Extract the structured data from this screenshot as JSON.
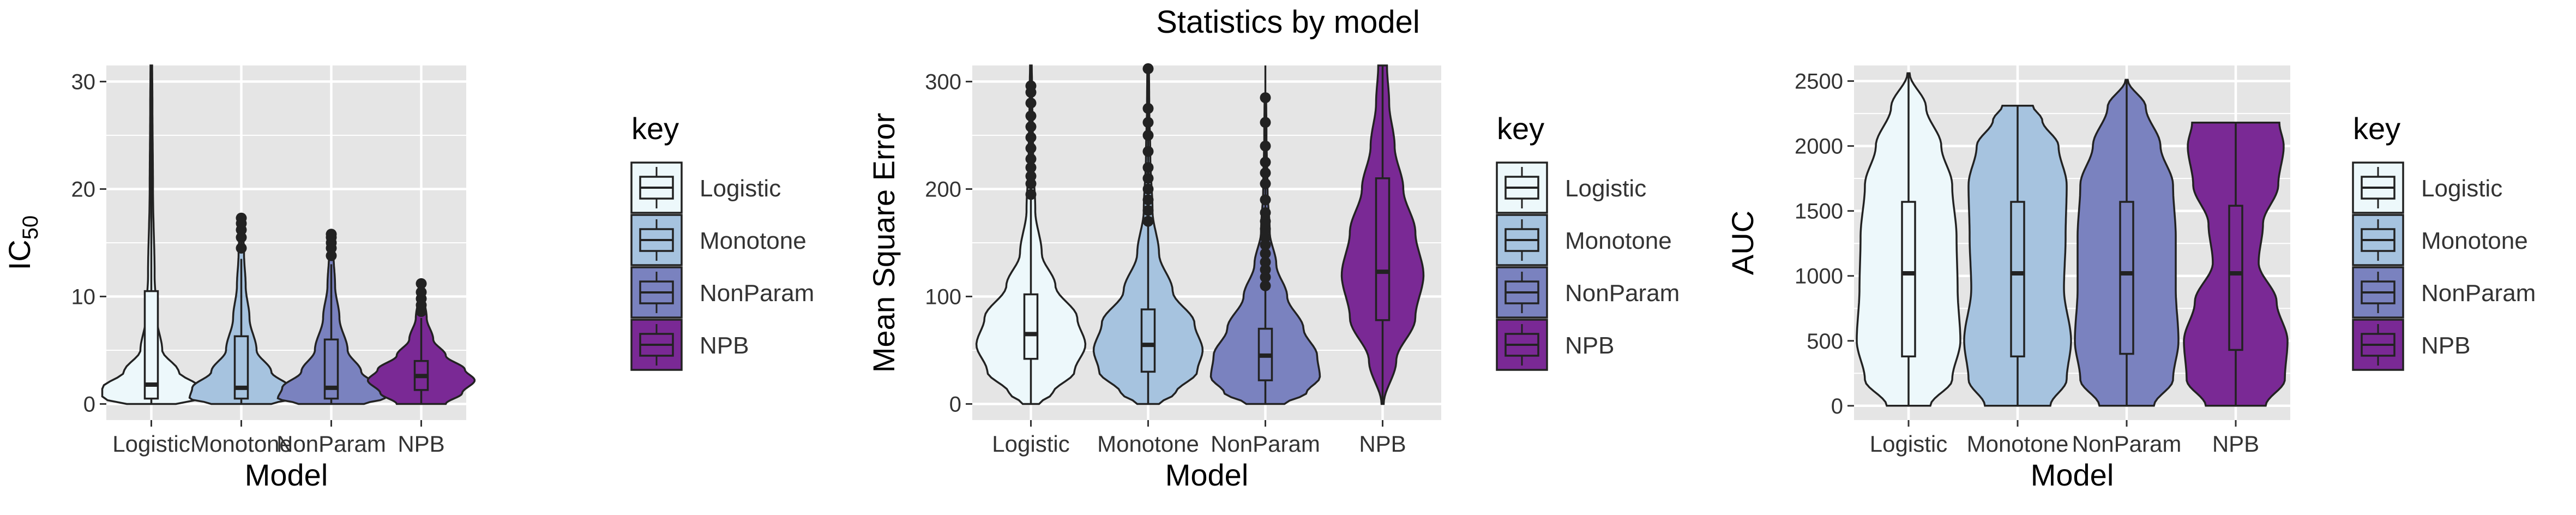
{
  "title": "Statistics by model",
  "colors": {
    "Logistic": "#edf8fb",
    "Monotone": "#a6c3df",
    "NonParam": "#7a82bf",
    "NPB": "#7a2995",
    "panel_bg": "#e5e5e5",
    "grid": "#ffffff",
    "outline": "#222222",
    "text": "#333333"
  },
  "chart_data": [
    {
      "type": "violin",
      "xlabel": "Model",
      "ylabel_main": "IC",
      "ylabel_sub": "50",
      "ylim": [
        -1.5,
        31.5
      ],
      "yticks": [
        0,
        10,
        20,
        30
      ],
      "categories": [
        "Logistic",
        "Monotone",
        "NonParam",
        "NPB"
      ],
      "legend_title": "key",
      "legend_position": "right",
      "violins": [
        {
          "profile": [
            [
              0.0,
              0.45
            ],
            [
              0.5,
              0.9
            ],
            [
              1.5,
              0.9
            ],
            [
              3,
              0.5
            ],
            [
              5,
              0.2
            ],
            [
              8,
              0.1
            ],
            [
              12,
              0.06
            ],
            [
              20,
              0.03
            ],
            [
              28,
              0.02
            ],
            [
              31.5,
              0.015
            ]
          ],
          "box": {
            "q1": 0.5,
            "median": 1.8,
            "q3": 10.5,
            "wlow": 0,
            "whigh": 31.5
          },
          "outliers": []
        },
        {
          "profile": [
            [
              0.0,
              0.55
            ],
            [
              0.5,
              0.95
            ],
            [
              1.5,
              0.9
            ],
            [
              3,
              0.55
            ],
            [
              5,
              0.28
            ],
            [
              8,
              0.15
            ],
            [
              11,
              0.08
            ],
            [
              14,
              0.05
            ],
            [
              17.3,
              0.02
            ]
          ],
          "box": {
            "q1": 0.5,
            "median": 1.5,
            "q3": 6.3,
            "wlow": 0,
            "whigh": 13.5
          },
          "outliers": [
            14.5,
            15.5,
            16.2,
            16.8,
            17.3
          ]
        },
        {
          "profile": [
            [
              0.0,
              0.6
            ],
            [
              0.5,
              0.98
            ],
            [
              1.5,
              0.9
            ],
            [
              3,
              0.55
            ],
            [
              5,
              0.3
            ],
            [
              8,
              0.15
            ],
            [
              11,
              0.07
            ],
            [
              14,
              0.04
            ],
            [
              15.8,
              0.02
            ]
          ],
          "box": {
            "q1": 0.5,
            "median": 1.5,
            "q3": 6.0,
            "wlow": 0,
            "whigh": 13.0
          },
          "outliers": [
            13.8,
            14.5,
            15.0,
            15.5,
            15.8
          ]
        },
        {
          "profile": [
            [
              0.0,
              0.45
            ],
            [
              1,
              0.75
            ],
            [
              2.2,
              0.98
            ],
            [
              3.2,
              0.8
            ],
            [
              4.5,
              0.45
            ],
            [
              6,
              0.22
            ],
            [
              8,
              0.1
            ],
            [
              10,
              0.05
            ],
            [
              11.2,
              0.02
            ]
          ],
          "box": {
            "q1": 1.3,
            "median": 2.6,
            "q3": 4.0,
            "wlow": 0,
            "whigh": 8.0
          },
          "outliers": [
            8.6,
            9.2,
            9.8,
            10.4,
            11.2
          ]
        }
      ]
    },
    {
      "type": "violin",
      "xlabel": "Model",
      "ylabel_main": "Mean Square Error",
      "ylabel_sub": "",
      "ylim": [
        -15,
        315
      ],
      "yticks": [
        0,
        100,
        200,
        300
      ],
      "categories": [
        "Logistic",
        "Monotone",
        "NonParam",
        "NPB"
      ],
      "legend_title": "key",
      "legend_position": "right",
      "violins": [
        {
          "profile": [
            [
              0,
              0.15
            ],
            [
              10,
              0.4
            ],
            [
              30,
              0.8
            ],
            [
              55,
              1.0
            ],
            [
              80,
              0.85
            ],
            [
              110,
              0.45
            ],
            [
              140,
              0.2
            ],
            [
              180,
              0.08
            ],
            [
              230,
              0.04
            ],
            [
              300,
              0.02
            ],
            [
              315,
              0.015
            ]
          ],
          "box": {
            "q1": 42,
            "median": 65,
            "q3": 102,
            "wlow": 0,
            "whigh": 315
          },
          "outliers": [
            195,
            205,
            212,
            220,
            228,
            238,
            248,
            258,
            268,
            280,
            290,
            296
          ]
        },
        {
          "profile": [
            [
              0,
              0.2
            ],
            [
              10,
              0.5
            ],
            [
              30,
              0.9
            ],
            [
              50,
              1.0
            ],
            [
              75,
              0.85
            ],
            [
              105,
              0.45
            ],
            [
              140,
              0.2
            ],
            [
              180,
              0.08
            ],
            [
              230,
              0.04
            ],
            [
              280,
              0.02
            ],
            [
              315,
              0.015
            ]
          ],
          "box": {
            "q1": 30,
            "median": 55,
            "q3": 88,
            "wlow": 0,
            "whigh": 315
          },
          "outliers": [
            170,
            180,
            190,
            200,
            210,
            220,
            235,
            250,
            262,
            275,
            312
          ]
        },
        {
          "profile": [
            [
              0,
              0.35
            ],
            [
              10,
              0.75
            ],
            [
              25,
              1.0
            ],
            [
              45,
              0.95
            ],
            [
              70,
              0.7
            ],
            [
              100,
              0.4
            ],
            [
              130,
              0.2
            ],
            [
              160,
              0.08
            ],
            [
              200,
              0.04
            ],
            [
              250,
              0.02
            ],
            [
              285,
              0.015
            ]
          ],
          "box": {
            "q1": 22,
            "median": 45,
            "q3": 70,
            "wlow": 0,
            "whigh": 315
          },
          "outliers": [
            110,
            118,
            125,
            132,
            140,
            148,
            155,
            163,
            170,
            178,
            190,
            205,
            215,
            225,
            240,
            262,
            285
          ]
        },
        {
          "profile": [
            [
              0,
              0.02
            ],
            [
              40,
              0.25
            ],
            [
              80,
              0.6
            ],
            [
              120,
              0.75
            ],
            [
              160,
              0.6
            ],
            [
              200,
              0.38
            ],
            [
              240,
              0.22
            ],
            [
              280,
              0.12
            ],
            [
              315,
              0.08
            ]
          ],
          "box": {
            "q1": 78,
            "median": 123,
            "q3": 210,
            "wlow": 0,
            "whigh": 315
          },
          "outliers": []
        }
      ]
    },
    {
      "type": "violin",
      "xlabel": "Model",
      "ylabel_main": "AUC",
      "ylabel_sub": "",
      "ylim": [
        -110,
        2620
      ],
      "yticks": [
        0,
        500,
        1000,
        1500,
        2000,
        2500
      ],
      "categories": [
        "Logistic",
        "Monotone",
        "NonParam",
        "NPB"
      ],
      "legend_title": "key",
      "legend_position": "right",
      "violins": [
        {
          "profile": [
            [
              0,
              0.4
            ],
            [
              200,
              0.8
            ],
            [
              500,
              0.95
            ],
            [
              900,
              0.9
            ],
            [
              1300,
              0.88
            ],
            [
              1700,
              0.8
            ],
            [
              2000,
              0.6
            ],
            [
              2300,
              0.32
            ],
            [
              2560,
              0.02
            ]
          ],
          "box": {
            "q1": 380,
            "median": 1020,
            "q3": 1570,
            "wlow": 0,
            "whigh": 2560
          },
          "outliers": []
        },
        {
          "profile": [
            [
              0,
              0.6
            ],
            [
              200,
              0.9
            ],
            [
              500,
              0.98
            ],
            [
              900,
              0.85
            ],
            [
              1300,
              0.88
            ],
            [
              1700,
              0.9
            ],
            [
              2000,
              0.75
            ],
            [
              2200,
              0.45
            ],
            [
              2310,
              0.28
            ]
          ],
          "box": {
            "q1": 380,
            "median": 1020,
            "q3": 1570,
            "wlow": 0,
            "whigh": 2310
          },
          "outliers": []
        },
        {
          "profile": [
            [
              0,
              0.5
            ],
            [
              200,
              0.85
            ],
            [
              500,
              0.95
            ],
            [
              900,
              0.9
            ],
            [
              1300,
              0.9
            ],
            [
              1700,
              0.85
            ],
            [
              2000,
              0.62
            ],
            [
              2300,
              0.35
            ],
            [
              2510,
              0.02
            ]
          ],
          "box": {
            "q1": 400,
            "median": 1020,
            "q3": 1570,
            "wlow": 0,
            "whigh": 2510
          },
          "outliers": []
        },
        {
          "profile": [
            [
              0,
              0.55
            ],
            [
              200,
              0.9
            ],
            [
              500,
              0.95
            ],
            [
              800,
              0.75
            ],
            [
              1100,
              0.42
            ],
            [
              1400,
              0.5
            ],
            [
              1700,
              0.78
            ],
            [
              2000,
              0.88
            ],
            [
              2180,
              0.8
            ]
          ],
          "box": {
            "q1": 430,
            "median": 1020,
            "q3": 1540,
            "wlow": 0,
            "whigh": 2180
          },
          "outliers": []
        }
      ]
    }
  ]
}
